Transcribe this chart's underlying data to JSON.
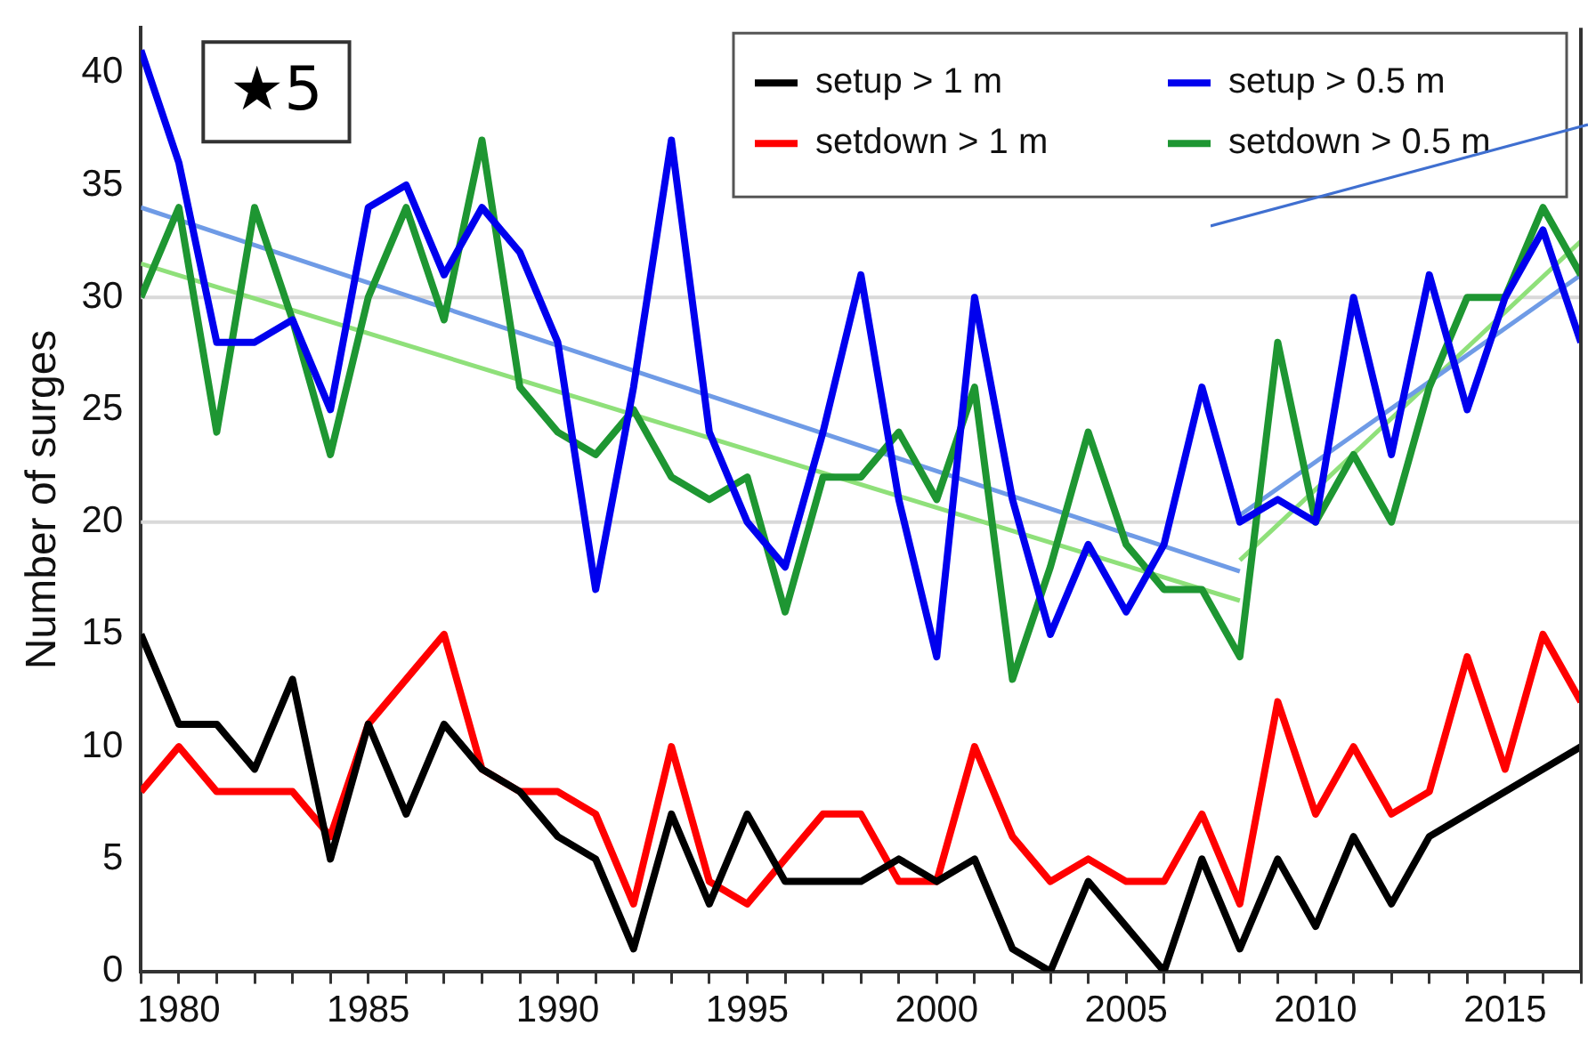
{
  "chart_data": {
    "type": "line",
    "ylabel": "Number of surges",
    "annotations": [
      "★5"
    ],
    "x": [
      1979,
      1980,
      1981,
      1982,
      1983,
      1984,
      1985,
      1986,
      1987,
      1988,
      1989,
      1990,
      1991,
      1992,
      1993,
      1994,
      1995,
      1996,
      1997,
      1998,
      1999,
      2000,
      2001,
      2002,
      2003,
      2004,
      2005,
      2006,
      2007,
      2008,
      2009,
      2010,
      2011,
      2012,
      2013,
      2014,
      2015,
      2016,
      2017
    ],
    "series": [
      {
        "name": "setup > 1 m",
        "color": "#000000",
        "values": [
          15,
          11,
          11,
          9,
          13,
          5,
          11,
          7,
          11,
          9,
          8,
          6,
          5,
          1,
          7,
          3,
          7,
          4,
          4,
          4,
          5,
          4,
          5,
          1,
          0,
          4,
          2,
          0,
          5,
          1,
          5,
          2,
          6,
          3,
          6,
          7,
          8,
          9,
          10
        ]
      },
      {
        "name": "setdown > 1 m",
        "color": "#ff0000",
        "values": [
          8,
          10,
          8,
          8,
          8,
          6,
          11,
          13,
          15,
          9,
          8,
          8,
          7,
          3,
          10,
          4,
          3,
          5,
          7,
          7,
          4,
          4,
          10,
          6,
          4,
          5,
          4,
          4,
          7,
          3,
          12,
          7,
          10,
          7,
          8,
          14,
          9,
          15,
          12
        ]
      },
      {
        "name": "setup > 0.5 m",
        "color": "#0000ee",
        "values": [
          41,
          36,
          28,
          28,
          29,
          25,
          34,
          35,
          31,
          34,
          32,
          28,
          17,
          26,
          37,
          24,
          20,
          18,
          24,
          31,
          21,
          14,
          30,
          21,
          15,
          19,
          16,
          19,
          26,
          20,
          21,
          20,
          30,
          23,
          31,
          25,
          30,
          33,
          28
        ]
      },
      {
        "name": "setdown > 0.5 m",
        "color": "#1e9632",
        "values": [
          30,
          34,
          24,
          34,
          29,
          23,
          30,
          34,
          29,
          37,
          26,
          24,
          23,
          25,
          22,
          21,
          22,
          16,
          22,
          22,
          24,
          21,
          26,
          13,
          18,
          24,
          19,
          17,
          17,
          14,
          28,
          20,
          23,
          20,
          26,
          30,
          30,
          34,
          31
        ]
      },
      {
        "type": "line",
        "color": "#6f9be6",
        "x": [
          1979,
          2008
        ],
        "values": [
          34,
          17.8
        ]
      },
      {
        "type": "line",
        "color": "#8fe07a",
        "x": [
          1979,
          2008
        ],
        "values": [
          31.5,
          16.5
        ]
      },
      {
        "type": "line",
        "color": "#6f9be6",
        "x": [
          2008,
          2017
        ],
        "values": [
          20.3,
          31
        ]
      },
      {
        "type": "line",
        "color": "#8fe07a",
        "x": [
          2008,
          2017
        ],
        "values": [
          18.3,
          32.5
        ]
      }
    ],
    "xlim": [
      1979,
      2017
    ],
    "xticks": [
      {
        "value": 1979,
        "label": null
      },
      1980,
      {
        "value": 1981,
        "label": null
      },
      {
        "value": 1982,
        "label": null
      },
      {
        "value": 1983,
        "label": null
      },
      {
        "value": 1984,
        "label": null
      },
      1985,
      {
        "value": 1986,
        "label": null
      },
      {
        "value": 1987,
        "label": null
      },
      {
        "value": 1988,
        "label": null
      },
      {
        "value": 1989,
        "label": null
      },
      1990,
      {
        "value": 1991,
        "label": null
      },
      {
        "value": 1992,
        "label": null
      },
      {
        "value": 1993,
        "label": null
      },
      {
        "value": 1994,
        "label": null
      },
      1995,
      {
        "value": 1996,
        "label": null
      },
      {
        "value": 1997,
        "label": null
      },
      {
        "value": 1998,
        "label": null
      },
      {
        "value": 1999,
        "label": null
      },
      2000,
      {
        "value": 2001,
        "label": null
      },
      {
        "value": 2002,
        "label": null
      },
      {
        "value": 2003,
        "label": null
      },
      {
        "value": 2004,
        "label": null
      },
      2005,
      {
        "value": 2006,
        "label": null
      },
      {
        "value": 2007,
        "label": null
      },
      {
        "value": 2008,
        "label": null
      },
      {
        "value": 2009,
        "label": null
      },
      2010,
      {
        "value": 2011,
        "label": null
      },
      {
        "value": 2012,
        "label": null
      },
      {
        "value": 2013,
        "label": null
      },
      {
        "value": 2014,
        "label": null
      },
      2015,
      {
        "value": 2016,
        "label": null
      },
      {
        "value": 2017,
        "label": null
      }
    ],
    "ylim": [
      0,
      42
    ],
    "yticks": [
      0,
      5,
      10,
      15,
      20,
      25,
      30,
      35,
      40
    ],
    "ref_lines": [
      {
        "axis": "y",
        "value": 20,
        "color": "#d9d9d9"
      },
      {
        "axis": "y",
        "value": 30,
        "color": "#d9d9d9"
      }
    ],
    "legend": "top right",
    "marker": "none",
    "line_style": "solid"
  }
}
